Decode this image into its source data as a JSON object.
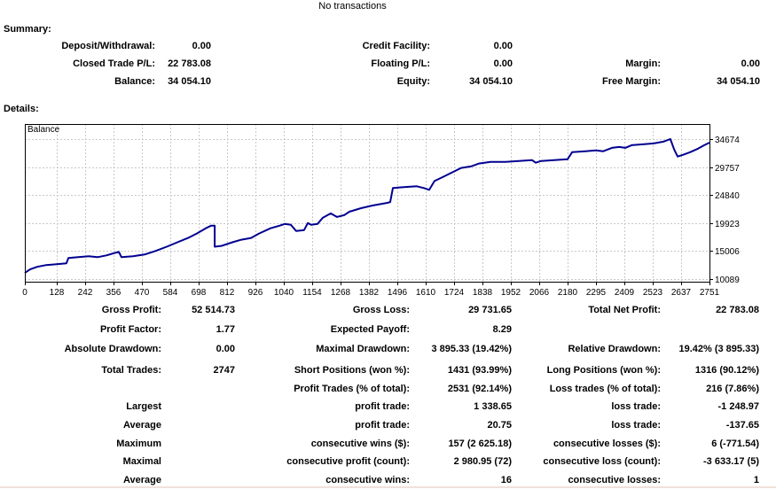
{
  "header": {
    "no_transactions": "No transactions"
  },
  "summary": {
    "title": "Summary:",
    "rows": [
      [
        {
          "label": "Deposit/Withdrawal:",
          "value": "0.00"
        },
        {
          "label": "Credit Facility:",
          "value": "0.00"
        },
        null
      ],
      [
        {
          "label": "Closed Trade P/L:",
          "value": "22 783.08"
        },
        {
          "label": "Floating P/L:",
          "value": "0.00"
        },
        {
          "label": "Margin:",
          "value": "0.00"
        }
      ],
      [
        {
          "label": "Balance:",
          "value": "34 054.10"
        },
        {
          "label": "Equity:",
          "value": "34 054.10"
        },
        {
          "label": "Free Margin:",
          "value": "34 054.10"
        }
      ]
    ]
  },
  "details": {
    "title": "Details:",
    "profit_rows": [
      [
        {
          "label": "Gross Profit:",
          "value": "52 514.73"
        },
        {
          "label": "Gross Loss:",
          "value": "29 731.65"
        },
        {
          "label": "Total Net Profit:",
          "value": "22 783.08"
        }
      ],
      [
        {
          "label": "Profit Factor:",
          "value": "1.77"
        },
        {
          "label": "Expected Payoff:",
          "value": "8.29"
        },
        null
      ],
      [
        {
          "label": "Absolute Drawdown:",
          "value": "0.00"
        },
        {
          "label": "Maximal Drawdown:",
          "value": "3 895.33 (19.42%)"
        },
        {
          "label": "Relative Drawdown:",
          "value": "19.42% (3 895.33)"
        }
      ]
    ],
    "trade_rows": [
      [
        {
          "label": "Total Trades:",
          "value": "2747"
        },
        {
          "label": "Short Positions (won %):",
          "value": "1431 (93.99%)"
        },
        {
          "label": "Long Positions (won %):",
          "value": "1316 (90.12%)"
        }
      ],
      [
        null,
        {
          "label": "Profit Trades (% of total):",
          "value": "2531 (92.14%)"
        },
        {
          "label": "Loss trades (% of total):",
          "value": "216 (7.86%)"
        }
      ],
      [
        {
          "label": "Largest",
          "value": ""
        },
        {
          "label": "profit trade:",
          "value": "1 338.65"
        },
        {
          "label": "loss trade:",
          "value": "-1 248.97"
        }
      ],
      [
        {
          "label": "Average",
          "value": ""
        },
        {
          "label": "profit trade:",
          "value": "20.75"
        },
        {
          "label": "loss trade:",
          "value": "-137.65"
        }
      ],
      [
        {
          "label": "Maximum",
          "value": ""
        },
        {
          "label": "consecutive wins ($):",
          "value": "157 (2 625.18)"
        },
        {
          "label": "consecutive losses ($):",
          "value": "6 (-771.54)"
        }
      ],
      [
        {
          "label": "Maximal",
          "value": ""
        },
        {
          "label": "consecutive profit (count):",
          "value": "2 980.95 (72)"
        },
        {
          "label": "consecutive loss (count):",
          "value": "-3 633.17 (5)"
        }
      ],
      [
        {
          "label": "Average",
          "value": ""
        },
        {
          "label": "consecutive wins:",
          "value": "16"
        },
        {
          "label": "consecutive losses:",
          "value": "1"
        }
      ]
    ]
  },
  "chart_data": {
    "type": "line",
    "title": "Balance",
    "xlabel": "",
    "ylabel": "",
    "xlim": [
      0,
      2751
    ],
    "ylim": [
      9622,
      37319
    ],
    "grid": true,
    "legend_position": "top-left",
    "grid_color": "#c8c8c8",
    "border_color": "#000000",
    "xticks": [
      0,
      128,
      242,
      356,
      470,
      584,
      698,
      812,
      926,
      1040,
      1154,
      1268,
      1382,
      1496,
      1610,
      1724,
      1838,
      1952,
      2066,
      2180,
      2295,
      2409,
      2523,
      2637,
      2751
    ],
    "yticks": [
      10089,
      15006,
      19923,
      24840,
      29757,
      34674
    ],
    "series": [
      {
        "name": "Balance",
        "color": "#000090",
        "points": [
          [
            0,
            11165
          ],
          [
            21,
            11779
          ],
          [
            50,
            12240
          ],
          [
            86,
            12548
          ],
          [
            128,
            12702
          ],
          [
            167,
            12856
          ],
          [
            175,
            13778
          ],
          [
            214,
            13931
          ],
          [
            257,
            14085
          ],
          [
            292,
            13931
          ],
          [
            328,
            14239
          ],
          [
            363,
            14700
          ],
          [
            378,
            14853
          ],
          [
            388,
            13931
          ],
          [
            435,
            14085
          ],
          [
            481,
            14392
          ],
          [
            524,
            15007
          ],
          [
            570,
            15775
          ],
          [
            613,
            16543
          ],
          [
            656,
            17312
          ],
          [
            691,
            18080
          ],
          [
            727,
            19002
          ],
          [
            748,
            19463
          ],
          [
            763,
            19463
          ],
          [
            763,
            15775
          ],
          [
            791,
            15929
          ],
          [
            834,
            16543
          ],
          [
            870,
            17004
          ],
          [
            909,
            17312
          ],
          [
            941,
            18080
          ],
          [
            987,
            19002
          ],
          [
            1023,
            19463
          ],
          [
            1044,
            19771
          ],
          [
            1069,
            19617
          ],
          [
            1090,
            18541
          ],
          [
            1122,
            18695
          ],
          [
            1137,
            19924
          ],
          [
            1151,
            19617
          ],
          [
            1176,
            19771
          ],
          [
            1197,
            20846
          ],
          [
            1229,
            21615
          ],
          [
            1254,
            21000
          ],
          [
            1283,
            21308
          ],
          [
            1304,
            21922
          ],
          [
            1351,
            22537
          ],
          [
            1397,
            22998
          ],
          [
            1454,
            23459
          ],
          [
            1468,
            23612
          ],
          [
            1479,
            26071
          ],
          [
            1522,
            26225
          ],
          [
            1575,
            26378
          ],
          [
            1604,
            26071
          ],
          [
            1625,
            25763
          ],
          [
            1646,
            27300
          ],
          [
            1682,
            28068
          ],
          [
            1718,
            28837
          ],
          [
            1753,
            29605
          ],
          [
            1796,
            29912
          ],
          [
            1825,
            30373
          ],
          [
            1871,
            30681
          ],
          [
            1931,
            30681
          ],
          [
            1985,
            30834
          ],
          [
            2038,
            30988
          ],
          [
            2053,
            30527
          ],
          [
            2074,
            30834
          ],
          [
            2127,
            30988
          ],
          [
            2181,
            31142
          ],
          [
            2199,
            32371
          ],
          [
            2252,
            32525
          ],
          [
            2295,
            32678
          ],
          [
            2323,
            32525
          ],
          [
            2359,
            33139
          ],
          [
            2388,
            33293
          ],
          [
            2413,
            33139
          ],
          [
            2438,
            33600
          ],
          [
            2484,
            33754
          ],
          [
            2527,
            33907
          ],
          [
            2566,
            34215
          ],
          [
            2584,
            34522
          ],
          [
            2594,
            34674
          ],
          [
            2609,
            32832
          ],
          [
            2623,
            31602
          ],
          [
            2644,
            31910
          ],
          [
            2673,
            32371
          ],
          [
            2705,
            32986
          ],
          [
            2730,
            33600
          ],
          [
            2751,
            34054
          ]
        ]
      }
    ]
  }
}
